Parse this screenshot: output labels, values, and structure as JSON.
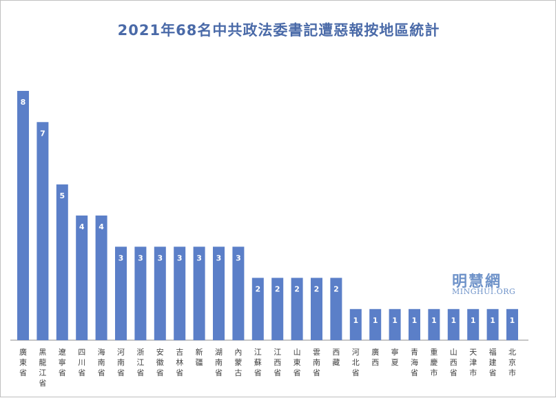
{
  "chart_data": {
    "type": "bar",
    "title": "2021年68名中共政法委書記遭惡報按地區統計",
    "categories": [
      "廣東省",
      "黑龍江省",
      "遼寧省",
      "四川省",
      "海南省",
      "河南省",
      "浙江省",
      "安徽省",
      "吉林省",
      "新疆",
      "湖南省",
      "內蒙古",
      "江蘇省",
      "江西省",
      "山東省",
      "雲南省",
      "西藏",
      "河北省",
      "廣西",
      "寧夏",
      "青海省",
      "重慶市",
      "山西省",
      "天津市",
      "福建省",
      "北京市"
    ],
    "values": [
      8,
      7,
      5,
      4,
      4,
      3,
      3,
      3,
      3,
      3,
      3,
      3,
      2,
      2,
      2,
      2,
      2,
      1,
      1,
      1,
      1,
      1,
      1,
      1,
      1,
      1
    ],
    "xlabel": "",
    "ylabel": "",
    "ylim": [
      0,
      8
    ],
    "grid": false,
    "legend": "none",
    "data_labels": true,
    "bar_color": "#5b7fc8",
    "label_color": "#ffffff",
    "axis_text_color": "#404040"
  },
  "watermark": {
    "name_cn": "明慧網",
    "name_en": "MINGHUI.ORG"
  },
  "colors": {
    "title": "#4a6aa8",
    "watermark": "#6f93c9",
    "axis": "#404040"
  }
}
